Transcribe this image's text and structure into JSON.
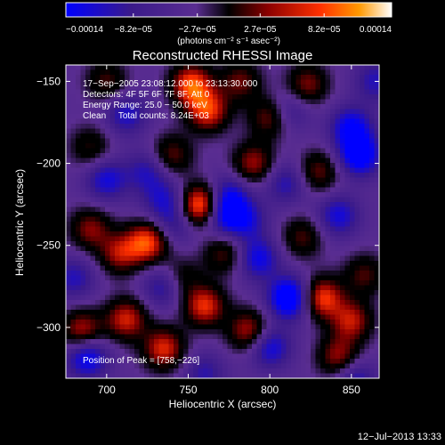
{
  "chart_data": {
    "type": "heatmap",
    "title": "Reconstructed RHESSI Image",
    "xlabel": "Heliocentric X (arcsec)",
    "ylabel": "Heliocentric Y (arcsec)",
    "xlim": [
      675,
      867
    ],
    "ylim": [
      -331,
      -140
    ],
    "x_ticks": [
      700,
      750,
      800,
      850
    ],
    "x_tick_labels": [
      "700",
      "750",
      "800",
      "850"
    ],
    "y_ticks": [
      -150,
      -200,
      -250,
      -300
    ],
    "y_tick_labels": [
      "−150",
      "−200",
      "−250",
      "−300"
    ],
    "colorbar": {
      "range": [
        -0.00014,
        0.00014
      ],
      "tick_values": [
        -0.00014,
        -8.2e-05,
        -2.7e-05,
        2.7e-05,
        8.2e-05,
        0.00014
      ],
      "tick_labels": [
        "−0.00014",
        "−8.2e−05",
        "−2.7e−05",
        "2.7e−05",
        "8.2e−05",
        "0.00014"
      ],
      "units_label": "(photons cm⁻² s⁻¹ asec⁻²)",
      "colors": [
        "#0000ff",
        "#3a1a8a",
        "#5a2d91",
        "#000000",
        "#8b0000",
        "#ff3000",
        "#ff9900",
        "#ffffff"
      ]
    },
    "annotations": [
      "17−Sep−2005 23:08:12.000 to 23:13:30.000",
      "Detectors: 4F 5F 6F 7F 8F, Att 0",
      "Energy Range: 25.0 − 50.0 keV",
      "Clean     Total counts: 8.24E+03"
    ],
    "peak_label": "Position of Peak = [758,−226]",
    "peak": [
      758,
      -226
    ],
    "blobs": [
      {
        "x": 758,
        "y": -226,
        "v": 1.0
      },
      {
        "x": 752,
        "y": -152,
        "v": 0.8
      },
      {
        "x": 762,
        "y": -168,
        "v": 0.72
      },
      {
        "x": 725,
        "y": -248,
        "v": 0.78
      },
      {
        "x": 708,
        "y": -255,
        "v": 0.55
      },
      {
        "x": 690,
        "y": -240,
        "v": 0.5
      },
      {
        "x": 685,
        "y": -302,
        "v": 0.62
      },
      {
        "x": 712,
        "y": -295,
        "v": 0.65
      },
      {
        "x": 735,
        "y": -313,
        "v": 0.68
      },
      {
        "x": 760,
        "y": -287,
        "v": 0.7
      },
      {
        "x": 787,
        "y": -302,
        "v": 0.6
      },
      {
        "x": 772,
        "y": -255,
        "v": 0.42
      },
      {
        "x": 790,
        "y": -200,
        "v": 0.55
      },
      {
        "x": 800,
        "y": -172,
        "v": 0.5
      },
      {
        "x": 782,
        "y": -150,
        "v": 0.45
      },
      {
        "x": 823,
        "y": -152,
        "v": 0.5
      },
      {
        "x": 830,
        "y": -205,
        "v": 0.45
      },
      {
        "x": 820,
        "y": -245,
        "v": 0.4
      },
      {
        "x": 832,
        "y": -282,
        "v": 0.75
      },
      {
        "x": 850,
        "y": -296,
        "v": 0.6
      },
      {
        "x": 842,
        "y": -318,
        "v": 0.55
      },
      {
        "x": 858,
        "y": -268,
        "v": 0.4
      },
      {
        "x": 700,
        "y": -150,
        "v": 0.4
      },
      {
        "x": 690,
        "y": -190,
        "v": 0.35
      },
      {
        "x": 740,
        "y": -195,
        "v": 0.45
      },
      {
        "x": 745,
        "y": -270,
        "v": 0.35
      },
      {
        "x": 850,
        "y": -178,
        "v": -0.6
      },
      {
        "x": 855,
        "y": -195,
        "v": -0.75
      },
      {
        "x": 812,
        "y": -282,
        "v": -0.85
      },
      {
        "x": 688,
        "y": -318,
        "v": -0.65
      },
      {
        "x": 712,
        "y": -170,
        "v": -0.45
      },
      {
        "x": 700,
        "y": -210,
        "v": -0.5
      },
      {
        "x": 725,
        "y": -205,
        "v": -0.4
      },
      {
        "x": 735,
        "y": -222,
        "v": -0.4
      },
      {
        "x": 742,
        "y": -237,
        "v": -0.35
      },
      {
        "x": 735,
        "y": -275,
        "v": -0.45
      },
      {
        "x": 770,
        "y": -232,
        "v": -0.55
      },
      {
        "x": 775,
        "y": -220,
        "v": -0.5
      },
      {
        "x": 785,
        "y": -235,
        "v": -0.45
      },
      {
        "x": 793,
        "y": -258,
        "v": -0.55
      },
      {
        "x": 800,
        "y": -312,
        "v": -0.55
      },
      {
        "x": 810,
        "y": -212,
        "v": -0.4
      },
      {
        "x": 842,
        "y": -232,
        "v": -0.5
      },
      {
        "x": 852,
        "y": -332,
        "v": -0.45
      },
      {
        "x": 680,
        "y": -270,
        "v": -0.4
      },
      {
        "x": 760,
        "y": -328,
        "v": -0.35
      },
      {
        "x": 812,
        "y": -168,
        "v": -0.35
      },
      {
        "x": 865,
        "y": -150,
        "v": -0.4
      }
    ]
  },
  "footer": {
    "timestamp": "12−Jul−2013 13:33"
  }
}
